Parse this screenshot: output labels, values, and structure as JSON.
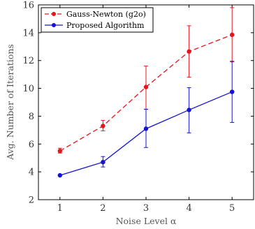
{
  "chart_data": {
    "type": "line",
    "xlabel": "Noise Level α",
    "ylabel": "Avg. Number of Iterations",
    "x": [
      1,
      2,
      3,
      4,
      5
    ],
    "xlim": [
      0.5,
      5.5
    ],
    "ylim": [
      2,
      16
    ],
    "xticks": [
      "1",
      "2",
      "3",
      "4",
      "5"
    ],
    "yticks": [
      "2",
      "4",
      "6",
      "8",
      "10",
      "12",
      "14",
      "16"
    ],
    "grid": false,
    "legend_position": "top-left",
    "series": [
      {
        "name": "Gauss-Newton (g2o)",
        "color": "#e8141c",
        "dash": "dashed",
        "marker": "circle",
        "values": [
          5.5,
          7.3,
          10.1,
          12.65,
          13.85
        ],
        "err_low": [
          5.35,
          6.95,
          8.5,
          10.8,
          11.9
        ],
        "err_high": [
          5.7,
          7.7,
          11.6,
          14.5,
          15.8
        ]
      },
      {
        "name": "Proposed Algorithm",
        "color": "#1414d6",
        "dash": "solid",
        "marker": "circle",
        "values": [
          3.75,
          4.7,
          7.1,
          8.45,
          9.75
        ],
        "err_low": [
          3.75,
          4.35,
          5.75,
          6.8,
          7.55
        ],
        "err_high": [
          3.75,
          5.1,
          8.5,
          10.05,
          11.95
        ]
      }
    ]
  }
}
